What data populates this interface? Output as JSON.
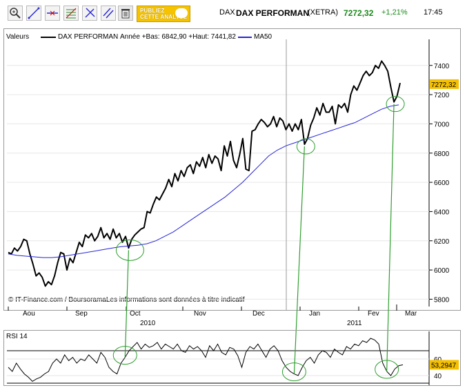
{
  "toolbar": {
    "tools": [
      "zoom-icon",
      "draw-line-icon",
      "horizontal-line-icon",
      "fibonacci-icon",
      "trend-arrow-icon",
      "parallel-lines-icon",
      "trash-icon"
    ],
    "publish_line1": "PUBLIEZ",
    "publish_line2": "CETTE ANALYSE"
  },
  "quote": {
    "market": "DAX",
    "name": "DAX PERFORMAN",
    "exchange": "(XETRA)",
    "price": "7272,32",
    "change": "+1,21%",
    "time": "17:45"
  },
  "colors": {
    "price": "#000000",
    "ma": "#2424d6",
    "marker": "#2e9e2e",
    "price_tag": "#f5c000",
    "change": "#1a8a1a"
  },
  "legend": {
    "valeurs": "Valeurs",
    "series_name": "DAX PERFORMAN",
    "range": "Année +Bas: 6842,90 +Haut: 7441,82",
    "ma_name": "MA50"
  },
  "copyright": "© IT-Finance.com / BoursoramaLes informations sont données à titre indicatif",
  "chart_data": [
    {
      "type": "line",
      "title": "DAX PERFORMAN",
      "ylim": [
        5750,
        7550
      ],
      "y_ticks": [
        5800,
        6000,
        6200,
        6400,
        6600,
        6800,
        7000,
        7200,
        7400
      ],
      "last_value": "7272,32",
      "x_month_labels": [
        "Aou",
        "Sep",
        "Oct",
        "Nov",
        "Dec",
        "Jan",
        "Fev",
        "Mar"
      ],
      "x_year_labels": [
        "2010",
        "2011"
      ],
      "series": [
        {
          "name": "DAX PERFORMAN",
          "values": [
            6120,
            6110,
            6150,
            6130,
            6160,
            6210,
            6200,
            6110,
            6040,
            5960,
            5980,
            5950,
            5890,
            5920,
            5900,
            5960,
            6050,
            6120,
            6110,
            6000,
            6080,
            6050,
            6120,
            6190,
            6160,
            6240,
            6220,
            6250,
            6200,
            6230,
            6290,
            6220,
            6250,
            6210,
            6280,
            6220,
            6250,
            6190,
            6230,
            6150,
            6210,
            6240,
            6260,
            6280,
            6290,
            6400,
            6390,
            6450,
            6500,
            6480,
            6520,
            6560,
            6620,
            6570,
            6660,
            6610,
            6680,
            6640,
            6700,
            6720,
            6660,
            6740,
            6710,
            6770,
            6700,
            6790,
            6730,
            6780,
            6760,
            6680,
            6850,
            6780,
            6880,
            6750,
            6700,
            6790,
            6900,
            6690,
            6680,
            6950,
            6960,
            7000,
            7030,
            7010,
            6980,
            7000,
            7050,
            6980,
            7040,
            7020,
            6960,
            7000,
            6950,
            7000,
            6960,
            7030,
            6860,
            6900,
            6990,
            7040,
            7110,
            7060,
            7140,
            7080,
            7080,
            7120,
            7000,
            7130,
            7110,
            7140,
            7080,
            7200,
            7260,
            7230,
            7280,
            7330,
            7360,
            7330,
            7350,
            7400,
            7380,
            7430,
            7400,
            7360,
            7250,
            7150,
            7190,
            7280
          ]
        },
        {
          "name": "MA50",
          "values": [
            6110,
            6100,
            6095,
            6090,
            6085,
            6085,
            6090,
            6100,
            6110,
            6120,
            6130,
            6140,
            6150,
            6160,
            6165,
            6170,
            6180,
            6200,
            6230,
            6260,
            6300,
            6340,
            6380,
            6420,
            6460,
            6500,
            6550,
            6600,
            6660,
            6720,
            6780,
            6820,
            6850,
            6870,
            6890,
            6910,
            6930,
            6950,
            6970,
            6990,
            7010,
            7040,
            7070,
            7100,
            7120,
            7130
          ]
        }
      ],
      "markers": [
        {
          "series_index": 0,
          "point_index": 39
        },
        {
          "series_index": 0,
          "point_index": 96
        },
        {
          "series_index": 0,
          "point_index": 125
        }
      ]
    },
    {
      "type": "line",
      "title": "RSI 14",
      "ylim": [
        30,
        90
      ],
      "y_ticks": [
        40,
        60
      ],
      "last_value": "53,2947",
      "series": [
        {
          "name": "RSI 14",
          "values": [
            50,
            45,
            55,
            48,
            42,
            38,
            33,
            36,
            38,
            42,
            45,
            55,
            60,
            55,
            65,
            58,
            62,
            55,
            60,
            58,
            65,
            60,
            55,
            68,
            62,
            50,
            45,
            42,
            55,
            62,
            70,
            75,
            80,
            72,
            78,
            74,
            76,
            80,
            72,
            78,
            75,
            72,
            78,
            70,
            68,
            76,
            72,
            75,
            70,
            62,
            76,
            70,
            78,
            68,
            65,
            74,
            72,
            64,
            50,
            68,
            75,
            72,
            78,
            70,
            62,
            72,
            76,
            70,
            58,
            50,
            45,
            42,
            40,
            50,
            58,
            62,
            55,
            65,
            70,
            68,
            62,
            72,
            68,
            65,
            75,
            72,
            78,
            76,
            82,
            80,
            85,
            83,
            78,
            55,
            45,
            40,
            48,
            52,
            53
          ]
        }
      ],
      "markers": [
        {
          "series_index": 0,
          "point_index": 29
        },
        {
          "series_index": 0,
          "point_index": 71
        },
        {
          "series_index": 0,
          "point_index": 94
        }
      ]
    }
  ]
}
